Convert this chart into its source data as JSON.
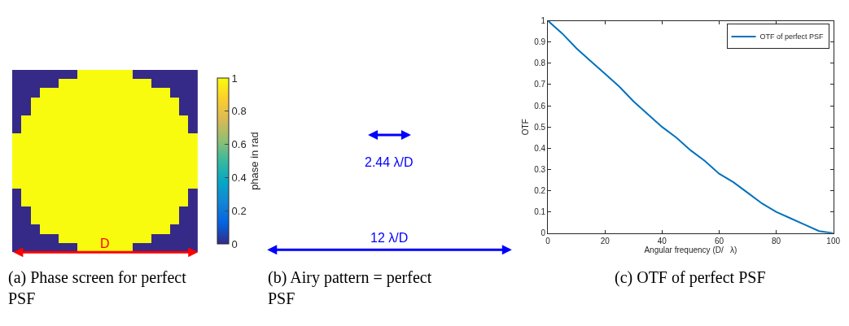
{
  "chart_data": [
    {
      "type": "heatmap",
      "categories": [
        null,
        null,
        null,
        null,
        null,
        null,
        null,
        null,
        null,
        null,
        null,
        null,
        null,
        null,
        null,
        null,
        null,
        null,
        null,
        null
      ],
      "y_categories": [
        null,
        null,
        null,
        null,
        null,
        null,
        null,
        null,
        null,
        null,
        null,
        null,
        null,
        null,
        null,
        null,
        null,
        null,
        null,
        null
      ],
      "cells": [
        [
          0,
          0,
          0,
          0,
          0,
          0,
          0,
          1,
          1,
          1,
          1,
          1,
          1,
          0,
          0,
          0,
          0,
          0,
          0,
          0
        ],
        [
          0,
          0,
          0,
          0,
          0,
          1,
          1,
          1,
          1,
          1,
          1,
          1,
          1,
          1,
          1,
          0,
          0,
          0,
          0,
          0
        ],
        [
          0,
          0,
          0,
          1,
          1,
          1,
          1,
          1,
          1,
          1,
          1,
          1,
          1,
          1,
          1,
          1,
          1,
          0,
          0,
          0
        ],
        [
          0,
          0,
          1,
          1,
          1,
          1,
          1,
          1,
          1,
          1,
          1,
          1,
          1,
          1,
          1,
          1,
          1,
          1,
          0,
          0
        ],
        [
          0,
          0,
          1,
          1,
          1,
          1,
          1,
          1,
          1,
          1,
          1,
          1,
          1,
          1,
          1,
          1,
          1,
          1,
          0,
          0
        ],
        [
          0,
          1,
          1,
          1,
          1,
          1,
          1,
          1,
          1,
          1,
          1,
          1,
          1,
          1,
          1,
          1,
          1,
          1,
          1,
          0
        ],
        [
          0,
          1,
          1,
          1,
          1,
          1,
          1,
          1,
          1,
          1,
          1,
          1,
          1,
          1,
          1,
          1,
          1,
          1,
          1,
          0
        ],
        [
          1,
          1,
          1,
          1,
          1,
          1,
          1,
          1,
          1,
          1,
          1,
          1,
          1,
          1,
          1,
          1,
          1,
          1,
          1,
          1
        ],
        [
          1,
          1,
          1,
          1,
          1,
          1,
          1,
          1,
          1,
          1,
          1,
          1,
          1,
          1,
          1,
          1,
          1,
          1,
          1,
          1
        ],
        [
          1,
          1,
          1,
          1,
          1,
          1,
          1,
          1,
          1,
          1,
          1,
          1,
          1,
          1,
          1,
          1,
          1,
          1,
          1,
          1
        ],
        [
          1,
          1,
          1,
          1,
          1,
          1,
          1,
          1,
          1,
          1,
          1,
          1,
          1,
          1,
          1,
          1,
          1,
          1,
          1,
          1
        ],
        [
          1,
          1,
          1,
          1,
          1,
          1,
          1,
          1,
          1,
          1,
          1,
          1,
          1,
          1,
          1,
          1,
          1,
          1,
          1,
          1
        ],
        [
          1,
          1,
          1,
          1,
          1,
          1,
          1,
          1,
          1,
          1,
          1,
          1,
          1,
          1,
          1,
          1,
          1,
          1,
          1,
          1
        ],
        [
          0,
          1,
          1,
          1,
          1,
          1,
          1,
          1,
          1,
          1,
          1,
          1,
          1,
          1,
          1,
          1,
          1,
          1,
          1,
          0
        ],
        [
          0,
          1,
          1,
          1,
          1,
          1,
          1,
          1,
          1,
          1,
          1,
          1,
          1,
          1,
          1,
          1,
          1,
          1,
          1,
          0
        ],
        [
          0,
          0,
          1,
          1,
          1,
          1,
          1,
          1,
          1,
          1,
          1,
          1,
          1,
          1,
          1,
          1,
          1,
          1,
          0,
          0
        ],
        [
          0,
          0,
          1,
          1,
          1,
          1,
          1,
          1,
          1,
          1,
          1,
          1,
          1,
          1,
          1,
          1,
          1,
          1,
          0,
          0
        ],
        [
          0,
          0,
          0,
          1,
          1,
          1,
          1,
          1,
          1,
          1,
          1,
          1,
          1,
          1,
          1,
          1,
          1,
          0,
          0,
          0
        ],
        [
          0,
          0,
          0,
          0,
          0,
          1,
          1,
          1,
          1,
          1,
          1,
          1,
          1,
          1,
          1,
          0,
          0,
          0,
          0,
          0
        ],
        [
          0,
          0,
          0,
          0,
          0,
          0,
          0,
          1,
          1,
          1,
          1,
          1,
          1,
          0,
          0,
          0,
          0,
          0,
          0,
          0
        ]
      ],
      "clim": [
        0,
        1
      ],
      "cticks": [
        0,
        0.2,
        0.4,
        0.6,
        0.8,
        1
      ],
      "clabel": "phase in rad",
      "annotations": [
        "D",
        "(a) Phase screen for perfect PSF"
      ]
    },
    {
      "type": "other",
      "annotations": [
        "2.44 λ/D",
        "12 λ/D",
        "(b) Airy pattern = perfect PSF"
      ]
    },
    {
      "type": "line",
      "xlabel": "Angular frequency (D/   λ)",
      "ylabel": "OTF",
      "x": [
        0,
        5,
        10,
        15,
        20,
        25,
        30,
        35,
        40,
        45,
        50,
        55,
        60,
        65,
        70,
        75,
        80,
        85,
        90,
        95,
        100
      ],
      "series": [
        {
          "name": "OTF of perfect PSF",
          "color": "#0072bd",
          "values": [
            1,
            0.94,
            0.87,
            0.81,
            0.75,
            0.69,
            0.62,
            0.56,
            0.5,
            0.45,
            0.39,
            0.34,
            0.28,
            0.24,
            0.19,
            0.14,
            0.1,
            0.07,
            0.04,
            0.01,
            0
          ]
        }
      ],
      "xlim": [
        0,
        100
      ],
      "ylim": [
        0,
        1
      ],
      "xticks": [
        0,
        20,
        40,
        60,
        80,
        100
      ],
      "yticks": [
        0,
        0.1,
        0.2,
        0.3,
        0.4,
        0.5,
        0.6,
        0.7,
        0.8,
        0.9,
        1
      ],
      "legend": "top right",
      "marker": "none",
      "line_style": "solid",
      "annotations": [
        "(c) OTF of perfect PSF"
      ]
    }
  ]
}
